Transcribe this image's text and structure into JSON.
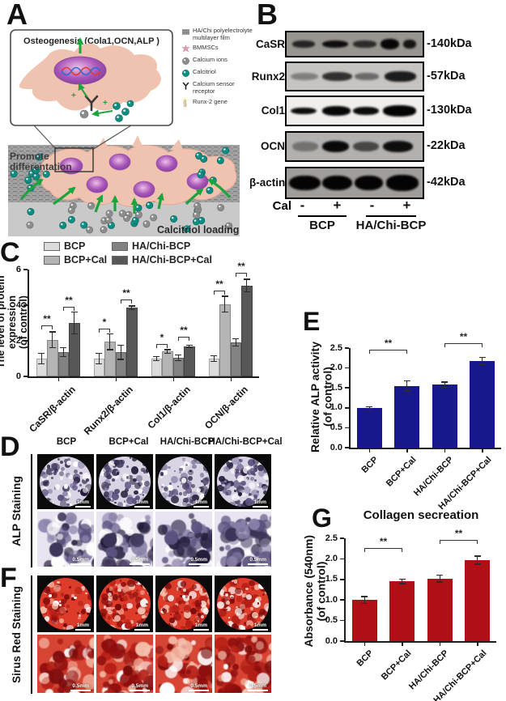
{
  "panelA": {
    "letter": "A",
    "inset_title": "Osteogenesis (Cola1,OCN,ALP )",
    "legend": [
      {
        "icon": "film-icon",
        "label": "HA/Chi polyelectrolyte multilayer film"
      },
      {
        "icon": "bmmsc-icon",
        "label": "BMMSCs"
      },
      {
        "icon": "calcium-ion-icon",
        "label": "Calcium ions"
      },
      {
        "icon": "calcitriol-icon",
        "label": "Calcitriol"
      },
      {
        "icon": "receptor-icon",
        "label": "Calcium sensor receptor"
      },
      {
        "icon": "gene-icon",
        "label": "Runx-2 gene"
      }
    ],
    "promote_line1": "Promote",
    "promote_line2": "differentation",
    "loading_label": "Calcitriol loading",
    "plus_sign": "+",
    "colors": {
      "calcitriol": "#0e8d82",
      "calcium_ion": "#8c8c8c",
      "cell": "#f0c2b0",
      "nucleus": "#a35ab5",
      "arrow": "#1ea43c"
    }
  },
  "panelB": {
    "letter": "B",
    "cal_label": "Cal",
    "cal_signs": [
      "-",
      "+",
      "-",
      "+"
    ],
    "group_labels": [
      "BCP",
      "HA/Chi-BCP"
    ],
    "blots": [
      {
        "label": "CaSR",
        "mw": "-140kDa",
        "bg": "#989490",
        "bands": [
          {
            "l": 4,
            "w": 17,
            "o": 0.75,
            "h": 30
          },
          {
            "l": 26,
            "w": 19,
            "o": 0.9,
            "h": 32
          },
          {
            "l": 49,
            "w": 17,
            "o": 0.7,
            "h": 30
          },
          {
            "l": 69,
            "w": 14,
            "o": 0.95,
            "h": 46
          },
          {
            "l": 86,
            "w": 9,
            "o": 0.85,
            "h": 38
          }
        ]
      },
      {
        "label": "Runx2",
        "mw": "-57kDa",
        "bg": "#c7c3c0",
        "bands": [
          {
            "l": 3,
            "w": 20,
            "o": 0.35,
            "h": 28
          },
          {
            "l": 26,
            "w": 22,
            "o": 0.75,
            "h": 34
          },
          {
            "l": 50,
            "w": 18,
            "o": 0.45,
            "h": 26
          },
          {
            "l": 72,
            "w": 23,
            "o": 0.85,
            "h": 38
          }
        ]
      },
      {
        "label": "Col1",
        "mw": "-130kDa",
        "bg": "#f1efec",
        "bands": [
          {
            "l": 3,
            "w": 19,
            "o": 0.95,
            "h": 26
          },
          {
            "l": 26,
            "w": 21,
            "o": 0.97,
            "h": 34
          },
          {
            "l": 49,
            "w": 19,
            "o": 0.95,
            "h": 30
          },
          {
            "l": 71,
            "w": 24,
            "o": 0.98,
            "h": 40
          }
        ]
      },
      {
        "label": "OCN",
        "mw": "-22kDa",
        "bg": "#b4b0ad",
        "bands": [
          {
            "l": 4,
            "w": 19,
            "o": 0.35,
            "h": 34
          },
          {
            "l": 26,
            "w": 20,
            "o": 0.95,
            "h": 42
          },
          {
            "l": 49,
            "w": 19,
            "o": 0.6,
            "h": 36
          },
          {
            "l": 71,
            "w": 22,
            "o": 0.92,
            "h": 42
          }
        ]
      },
      {
        "label": "β-actin",
        "mw": "-42kDa",
        "bg": "#a19d9a",
        "bands": [
          {
            "l": 2,
            "w": 23,
            "o": 0.97,
            "h": 52
          },
          {
            "l": 26,
            "w": 22,
            "o": 0.97,
            "h": 52
          },
          {
            "l": 50,
            "w": 21,
            "o": 0.97,
            "h": 52
          },
          {
            "l": 73,
            "w": 24,
            "o": 0.97,
            "h": 55
          }
        ]
      }
    ]
  },
  "chart_data": [
    {
      "id": "C",
      "type": "bar",
      "categories": [
        "CaSR/β-actin",
        "Runx2/β-actin",
        "Col1/β-actin",
        "OCN/β-actin"
      ],
      "series": [
        {
          "name": "BCP",
          "color": "#dcdcdc",
          "values": [
            1.0,
            1.0,
            1.0,
            1.0
          ],
          "errors": [
            0.3,
            0.3,
            0.12,
            0.15
          ]
        },
        {
          "name": "BCP+Cal",
          "color": "#b4b4b4",
          "values": [
            2.05,
            1.95,
            1.4,
            4.05
          ],
          "errors": [
            0.45,
            0.45,
            0.1,
            0.45
          ]
        },
        {
          "name": "HA/Chi-BCP",
          "color": "#828282",
          "values": [
            1.35,
            1.35,
            1.05,
            1.9
          ],
          "errors": [
            0.25,
            0.4,
            0.15,
            0.2
          ]
        },
        {
          "name": "HA/Chi-BCP+Cal",
          "color": "#575757",
          "values": [
            3.0,
            3.85,
            1.68,
            5.1
          ],
          "errors": [
            0.6,
            0.1,
            0.07,
            0.35
          ]
        }
      ],
      "ylabel_line1": "The level of protein expression",
      "ylabel_line2": "(of control)",
      "ylim": [
        0,
        6
      ],
      "yticks": [
        0,
        2,
        4,
        6
      ],
      "legend_position": "top",
      "grid": false,
      "significance": [
        {
          "group": 0,
          "pair": [
            0,
            1
          ],
          "y": 2.85,
          "label": "**"
        },
        {
          "group": 0,
          "pair": [
            2,
            3
          ],
          "y": 3.9,
          "label": "**"
        },
        {
          "group": 1,
          "pair": [
            0,
            1
          ],
          "y": 2.7,
          "label": "*"
        },
        {
          "group": 1,
          "pair": [
            2,
            3
          ],
          "y": 4.3,
          "label": "**"
        },
        {
          "group": 2,
          "pair": [
            0,
            1
          ],
          "y": 1.8,
          "label": "*"
        },
        {
          "group": 2,
          "pair": [
            2,
            3
          ],
          "y": 2.25,
          "label": "**"
        },
        {
          "group": 3,
          "pair": [
            0,
            1
          ],
          "y": 4.8,
          "label": "**"
        },
        {
          "group": 3,
          "pair": [
            2,
            3
          ],
          "y": 5.8,
          "label": "**"
        }
      ]
    },
    {
      "id": "E",
      "type": "bar",
      "categories": [
        "BCP",
        "BCP+Cal",
        "HA/Chi-BCP",
        "HA/Chi-BCP+Cal"
      ],
      "values": [
        1.0,
        1.55,
        1.58,
        2.17
      ],
      "errors": [
        0.03,
        0.13,
        0.07,
        0.09
      ],
      "bar_color": "#18188c",
      "ylabel_line1": "Relative ALP activity",
      "ylabel_line2": "(of control)",
      "ylim": [
        0,
        2.5
      ],
      "yticks": [
        0,
        0.5,
        1.0,
        1.5,
        2.0,
        2.5
      ],
      "grid": false,
      "significance": [
        {
          "pair": [
            0,
            1
          ],
          "y": 2.45,
          "label": "**"
        },
        {
          "pair": [
            2,
            3
          ],
          "y": 2.62,
          "label": "**"
        }
      ]
    },
    {
      "id": "G",
      "type": "bar",
      "title": "Collagen secreation",
      "categories": [
        "BCP",
        "BCP+Cal",
        "HA/Chi-BCP",
        "HA/Chi-BCP+Cal"
      ],
      "values": [
        1.0,
        1.45,
        1.52,
        1.97
      ],
      "errors": [
        0.08,
        0.05,
        0.08,
        0.1
      ],
      "bar_color": "#b01015",
      "ylabel_line1": "Absorbance (540nm)",
      "ylabel_line2": "(of control)",
      "ylim": [
        0,
        2.5
      ],
      "yticks": [
        0,
        0.5,
        1.0,
        1.5,
        2.0,
        2.5
      ],
      "grid": false,
      "significance": [
        {
          "pair": [
            0,
            1
          ],
          "y": 2.26,
          "label": "**"
        },
        {
          "pair": [
            2,
            3
          ],
          "y": 2.46,
          "label": "**"
        }
      ]
    }
  ],
  "panelC": {
    "letter": "C"
  },
  "panelD": {
    "letter": "D",
    "row_label": "ALP Staining",
    "columns": [
      "BCP",
      "BCP+Cal",
      "HA/Chi-BCP",
      "HA/Chi-BCP+Cal"
    ],
    "scale_top": "1mm",
    "scale_bottom": "0.5mm",
    "palette": {
      "base_disc": "#d9d3e3",
      "base_zoom": "#e9e4f0",
      "speckles": [
        "#3c3356",
        "#5d5180",
        "#241c3a",
        "#8c82aa"
      ]
    }
  },
  "panelE": {
    "letter": "E"
  },
  "panelF": {
    "letter": "F",
    "row_label": "Sirus Red Staining",
    "columns": [
      "BCP",
      "BCP+Cal",
      "HA/Chi-BCP",
      "HA/Chi-BCP+Cal"
    ],
    "scale_top": "1mm",
    "scale_bottom": "0.5mm",
    "palette": {
      "base_disc": "#dd3c2b",
      "base_zoom": "#d64433",
      "speckles": [
        "#8f0d0d",
        "#b51f16",
        "#f5c0ac",
        "#7a0b0b"
      ]
    }
  },
  "panelG": {
    "letter": "G"
  }
}
